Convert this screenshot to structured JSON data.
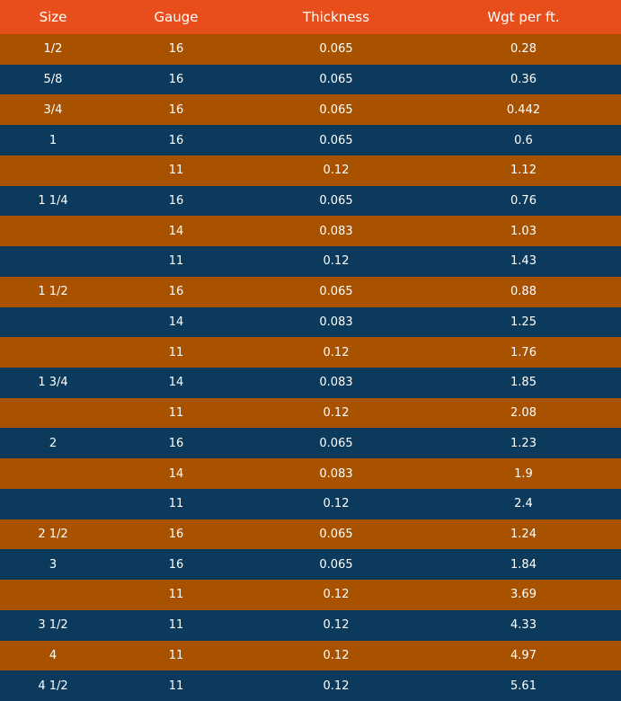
{
  "table": {
    "header": [
      "Size",
      "Gauge",
      "Thickness",
      "Wgt per ft."
    ],
    "rows": [
      [
        "1/2",
        "16",
        "0.065",
        "0.28"
      ],
      [
        "5/8",
        "16",
        "0.065",
        "0.36"
      ],
      [
        "3/4",
        "16",
        "0.065",
        "0.442"
      ],
      [
        "1",
        "16",
        "0.065",
        "0.6"
      ],
      [
        null,
        "11",
        "0.12",
        "1.12"
      ],
      [
        "1 1/4",
        "16",
        "0.065",
        "0.76"
      ],
      [
        null,
        "14",
        "0.083",
        "1.03"
      ],
      [
        null,
        "11",
        "0.12",
        "1.43"
      ],
      [
        "1 1/2",
        "16",
        "0.065",
        "0.88"
      ],
      [
        null,
        "14",
        "0.083",
        "1.25"
      ],
      [
        null,
        "11",
        "0.12",
        "1.76"
      ],
      [
        "1 3/4",
        "14",
        "0.083",
        "1.85"
      ],
      [
        null,
        "11",
        "0.12",
        "2.08"
      ],
      [
        "2",
        "16",
        "0.065",
        "1.23"
      ],
      [
        null,
        "14",
        "0.083",
        "1.9"
      ],
      [
        null,
        "11",
        "0.12",
        "2.4"
      ],
      [
        "2 1/2",
        "16",
        "0.065",
        "1.24"
      ],
      [
        "3",
        "16",
        "0.065",
        "1.84"
      ],
      [
        null,
        "11",
        "0.12",
        "3.69"
      ],
      [
        "3 1/2",
        "11",
        "0.12",
        "4.33"
      ],
      [
        "4",
        "11",
        "0.12",
        "4.97"
      ],
      [
        "4 1/2",
        "11",
        "0.12",
        "5.61"
      ]
    ]
  }
}
